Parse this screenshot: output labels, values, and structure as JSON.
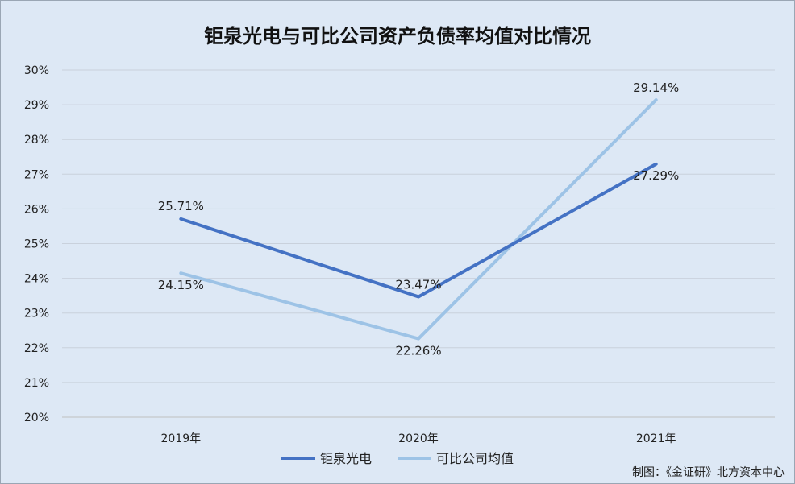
{
  "chart_data": {
    "type": "line",
    "title": "钜泉光电与可比公司资产负债率均值对比情况",
    "categories": [
      "2019年",
      "2020年",
      "2021年"
    ],
    "y_ticks": [
      "20%",
      "21%",
      "22%",
      "23%",
      "24%",
      "25%",
      "26%",
      "27%",
      "28%",
      "29%",
      "30%"
    ],
    "ylim": [
      20,
      30
    ],
    "grid": true,
    "legend_position": "bottom",
    "series": [
      {
        "name": "钜泉光电",
        "color": "#4472c4",
        "values": [
          25.71,
          23.47,
          27.29
        ],
        "labels": [
          "25.71%",
          "23.47%",
          "27.29%"
        ]
      },
      {
        "name": "可比公司均值",
        "color": "#9dc3e6",
        "values": [
          24.15,
          22.26,
          29.14
        ],
        "labels": [
          "24.15%",
          "22.26%",
          "29.14%"
        ]
      }
    ],
    "source_note": "制图：《金证研》北方资本中心"
  }
}
